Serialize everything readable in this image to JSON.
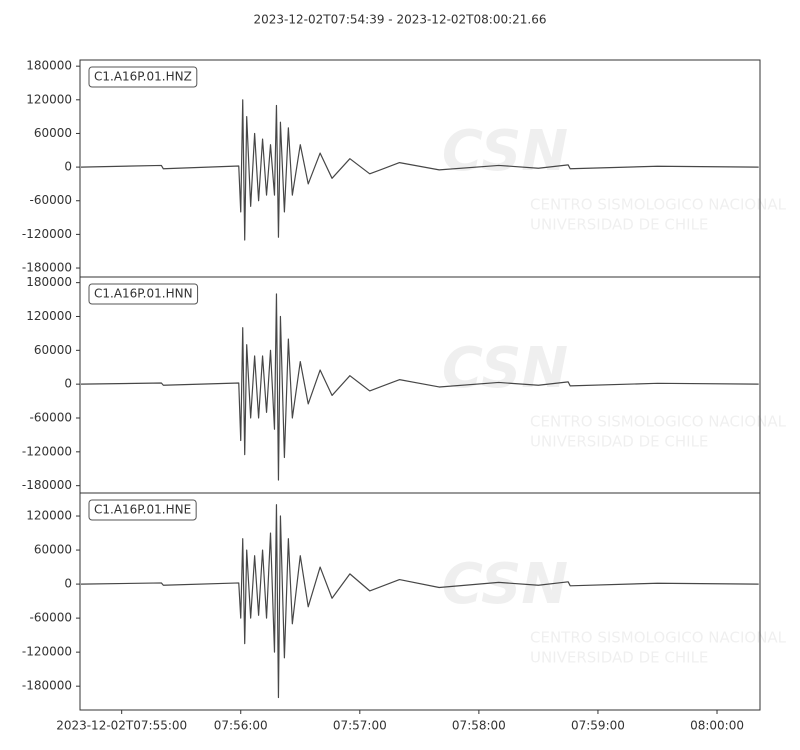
{
  "title": "2023-12-02T07:54:39  -  2023-12-02T08:00:21.66",
  "watermark": {
    "logo": "CSN",
    "line1": "CENTRO SISMOLOGICO NACIONAL",
    "line2": "UNIVERSIDAD DE CHILE"
  },
  "chart_data": [
    {
      "type": "line",
      "label": "C1.A16P.01.HNZ",
      "xlim": [
        "2023-12-02T07:54:39",
        "2023-12-02T08:00:21.66"
      ],
      "ylim": [
        -196000,
        191000
      ],
      "yticks": [
        -180000,
        -120000,
        -60000,
        0,
        60000,
        120000,
        180000
      ],
      "series": [
        {
          "color": "#474747",
          "x": [
            "2023-12-02T07:54:39.5",
            "2023-12-02T07:55:20",
            "2023-12-02T07:55:21",
            "2023-12-02T07:55:59",
            "2023-12-02T07:56:00",
            "2023-12-02T07:56:01",
            "2023-12-02T07:56:02",
            "2023-12-02T07:56:03",
            "2023-12-02T07:56:05",
            "2023-12-02T07:56:07",
            "2023-12-02T07:56:09",
            "2023-12-02T07:56:11",
            "2023-12-02T07:56:13",
            "2023-12-02T07:56:15",
            "2023-12-02T07:56:17",
            "2023-12-02T07:56:18",
            "2023-12-02T07:56:19",
            "2023-12-02T07:56:20",
            "2023-12-02T07:56:22",
            "2023-12-02T07:56:24",
            "2023-12-02T07:56:26",
            "2023-12-02T07:56:30",
            "2023-12-02T07:56:34",
            "2023-12-02T07:56:40",
            "2023-12-02T07:56:46",
            "2023-12-02T07:56:55",
            "2023-12-02T07:57:05",
            "2023-12-02T07:57:20",
            "2023-12-02T07:57:40",
            "2023-12-02T07:58:10",
            "2023-12-02T07:58:30",
            "2023-12-02T07:58:45",
            "2023-12-02T07:58:46",
            "2023-12-02T07:59:30",
            "2023-12-02T08:00:21"
          ],
          "values": [
            0,
            3000,
            -3000,
            2000,
            -80000,
            120000,
            -130000,
            90000,
            -70000,
            60000,
            -60000,
            50000,
            -50000,
            40000,
            -50000,
            110000,
            -125000,
            80000,
            -80000,
            70000,
            -50000,
            40000,
            -30000,
            25000,
            -20000,
            15000,
            -12000,
            8000,
            -5000,
            3000,
            -2000,
            4000,
            -3000,
            1500,
            0
          ]
        }
      ]
    },
    {
      "type": "line",
      "label": "C1.A16P.01.HNN",
      "xlim": [
        "2023-12-02T07:54:39",
        "2023-12-02T08:00:21.66"
      ],
      "ylim": [
        -193000,
        190000
      ],
      "yticks": [
        -180000,
        -120000,
        -60000,
        0,
        60000,
        120000,
        180000
      ],
      "series": [
        {
          "color": "#474747",
          "x": [
            "2023-12-02T07:54:39.5",
            "2023-12-02T07:55:20",
            "2023-12-02T07:55:21",
            "2023-12-02T07:55:59",
            "2023-12-02T07:56:00",
            "2023-12-02T07:56:01",
            "2023-12-02T07:56:02",
            "2023-12-02T07:56:03",
            "2023-12-02T07:56:05",
            "2023-12-02T07:56:07",
            "2023-12-02T07:56:09",
            "2023-12-02T07:56:11",
            "2023-12-02T07:56:13",
            "2023-12-02T07:56:15",
            "2023-12-02T07:56:17",
            "2023-12-02T07:56:18",
            "2023-12-02T07:56:19",
            "2023-12-02T07:56:20",
            "2023-12-02T07:56:22",
            "2023-12-02T07:56:24",
            "2023-12-02T07:56:26",
            "2023-12-02T07:56:30",
            "2023-12-02T07:56:34",
            "2023-12-02T07:56:40",
            "2023-12-02T07:56:46",
            "2023-12-02T07:56:55",
            "2023-12-02T07:57:05",
            "2023-12-02T07:57:20",
            "2023-12-02T07:57:40",
            "2023-12-02T07:58:10",
            "2023-12-02T07:58:30",
            "2023-12-02T07:58:45",
            "2023-12-02T07:58:46",
            "2023-12-02T07:59:30",
            "2023-12-02T08:00:21"
          ],
          "values": [
            0,
            2000,
            -2000,
            2000,
            -100000,
            100000,
            -125000,
            70000,
            -60000,
            50000,
            -60000,
            50000,
            -50000,
            60000,
            -80000,
            160000,
            -170000,
            120000,
            -130000,
            80000,
            -60000,
            40000,
            -35000,
            25000,
            -20000,
            15000,
            -12000,
            8000,
            -5000,
            3000,
            -2000,
            4000,
            -3000,
            1500,
            0
          ]
        }
      ]
    },
    {
      "type": "line",
      "label": "C1.A16P.01.HNE",
      "xlim": [
        "2023-12-02T07:54:39",
        "2023-12-02T08:00:21.66"
      ],
      "xticks": [
        "2023-12-02T07:55:00",
        {
          "value": "2023-12-02T07:56:00",
          "label": "07:56:00"
        },
        {
          "value": "2023-12-02T07:57:00",
          "label": "07:57:00"
        },
        {
          "value": "2023-12-02T07:58:00",
          "label": "07:58:00"
        },
        {
          "value": "2023-12-02T07:59:00",
          "label": "07:59:00"
        },
        {
          "value": "2023-12-02T08:00:00",
          "label": "08:00:00"
        }
      ],
      "ylim": [
        -222000,
        160600
      ],
      "yticks": [
        -180000,
        -120000,
        -60000,
        0,
        60000,
        120000
      ],
      "series": [
        {
          "color": "#474747",
          "x": [
            "2023-12-02T07:54:39.5",
            "2023-12-02T07:55:20",
            "2023-12-02T07:55:21",
            "2023-12-02T07:55:59",
            "2023-12-02T07:56:00",
            "2023-12-02T07:56:01",
            "2023-12-02T07:56:02",
            "2023-12-02T07:56:03",
            "2023-12-02T07:56:05",
            "2023-12-02T07:56:07",
            "2023-12-02T07:56:09",
            "2023-12-02T07:56:11",
            "2023-12-02T07:56:13",
            "2023-12-02T07:56:15",
            "2023-12-02T07:56:17",
            "2023-12-02T07:56:18",
            "2023-12-02T07:56:19",
            "2023-12-02T07:56:20",
            "2023-12-02T07:56:22",
            "2023-12-02T07:56:24",
            "2023-12-02T07:56:26",
            "2023-12-02T07:56:30",
            "2023-12-02T07:56:34",
            "2023-12-02T07:56:40",
            "2023-12-02T07:56:46",
            "2023-12-02T07:56:55",
            "2023-12-02T07:57:05",
            "2023-12-02T07:57:20",
            "2023-12-02T07:57:40",
            "2023-12-02T07:58:10",
            "2023-12-02T07:58:30",
            "2023-12-02T07:58:45",
            "2023-12-02T07:58:46",
            "2023-12-02T07:59:30",
            "2023-12-02T08:00:21"
          ],
          "values": [
            0,
            2000,
            -2000,
            2000,
            -60000,
            80000,
            -105000,
            60000,
            -60000,
            50000,
            -55000,
            60000,
            -60000,
            90000,
            -120000,
            140000,
            -200000,
            120000,
            -130000,
            80000,
            -70000,
            50000,
            -40000,
            30000,
            -25000,
            18000,
            -12000,
            8000,
            -6000,
            3000,
            -2000,
            4000,
            -3000,
            1500,
            0
          ]
        }
      ]
    }
  ]
}
